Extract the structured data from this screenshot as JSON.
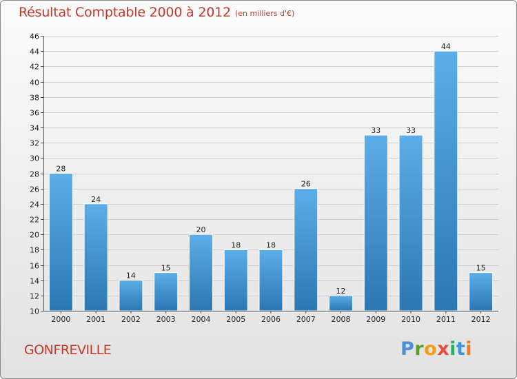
{
  "header": {
    "title": "Résultat Comptable 2000 à 2012",
    "subtitle": "(en milliers d'€)"
  },
  "footer": {
    "commune": "GONFREVILLE",
    "logo": "Proxiti"
  },
  "colors": {
    "title": "#c0392b",
    "bar_top": "#5dade8",
    "bar_bottom": "#2a77b4"
  },
  "chart_data": {
    "type": "bar",
    "title": "Résultat Comptable 2000 à 2012",
    "subtitle": "(en milliers d'€)",
    "categories": [
      "2000",
      "2001",
      "2002",
      "2003",
      "2004",
      "2005",
      "2006",
      "2007",
      "2008",
      "2009",
      "2010",
      "2011",
      "2012"
    ],
    "values": [
      28,
      24,
      14,
      15,
      20,
      18,
      18,
      26,
      12,
      33,
      33,
      44,
      15
    ],
    "ylim": [
      10,
      46
    ],
    "yticks": [
      10,
      12,
      14,
      16,
      18,
      20,
      22,
      24,
      26,
      28,
      30,
      32,
      34,
      36,
      38,
      40,
      42,
      44,
      46
    ],
    "grid": true
  }
}
